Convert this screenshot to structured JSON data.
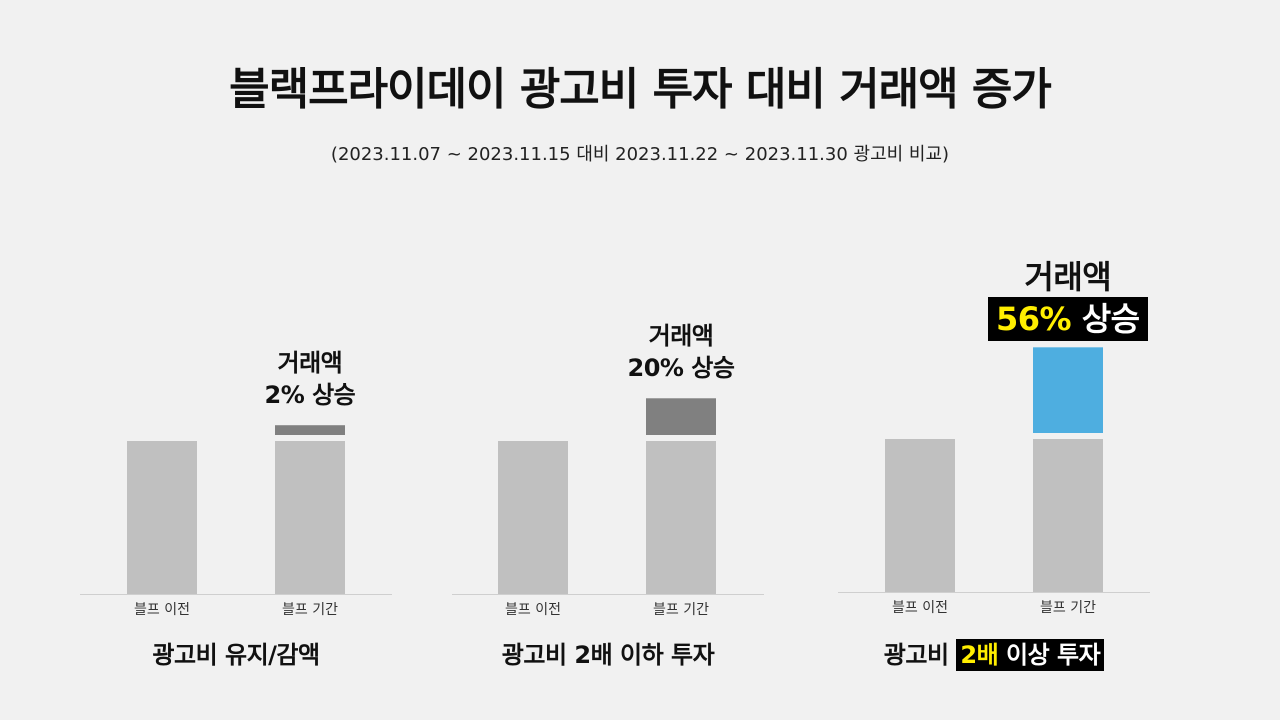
{
  "title": "블랙프라이데이 광고비 투자 대비 거래액 증가",
  "subtitle": "(2023.11.07 ~ 2023.11.15 대비 2023.11.22  ~ 2023.11.30 광고비 비교)",
  "colors": {
    "base_bar": "#c0c0c0",
    "increase_gray": "#808080",
    "increase_blue": "#4eaee0",
    "highlight_bg": "#000000",
    "highlight_text": "#ffee00"
  },
  "annotations": [
    {
      "line1": "거래액",
      "line2": "2% 상승"
    },
    {
      "line1": "거래액",
      "line2": "20% 상승"
    },
    {
      "line1": "거래액",
      "line2_highlight": "56%",
      "line2_rest": " 상승"
    }
  ],
  "group_labels": [
    {
      "text": "광고비 유지/감액"
    },
    {
      "text": "광고비 2배 이하 투자"
    },
    {
      "prefix": "광고비 ",
      "highlight": "2배",
      "suffix": " 이상 투자"
    }
  ],
  "chart_data": [
    {
      "type": "bar",
      "title": "광고비 유지/감액",
      "categories": [
        "블프 이전",
        "블프 기간"
      ],
      "values": [
        100,
        102
      ],
      "increase_pct": 2
    },
    {
      "type": "bar",
      "title": "광고비 2배 이하 투자",
      "categories": [
        "블프 이전",
        "블프 기간"
      ],
      "values": [
        100,
        120
      ],
      "increase_pct": 20
    },
    {
      "type": "bar",
      "title": "광고비 2배 이상 투자",
      "categories": [
        "블프 이전",
        "블프 기간"
      ],
      "values": [
        100,
        156
      ],
      "increase_pct": 56
    }
  ]
}
